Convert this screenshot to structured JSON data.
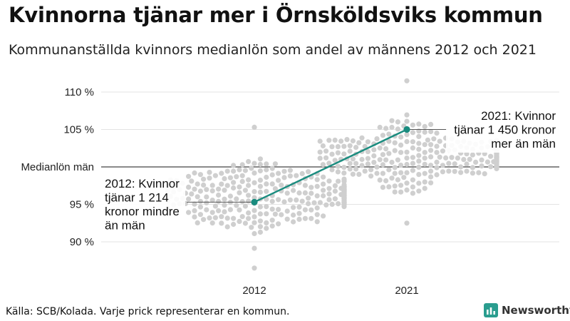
{
  "title": "Kvinnorna tjänar mer i Örnsköldsviks kommun",
  "subtitle": "Kommunanställda kvinnors medianlön som andel av männens 2012 och 2021",
  "source": "Källa: SCB/Kolada. Varje prick representerar en kommun.",
  "brand": "Newsworthy",
  "colors": {
    "highlight": "#1a8c7f",
    "dots": "#cfcfcf",
    "grid": "#e3e3e3",
    "reference": "#444444",
    "brand": "#2a9d8f"
  },
  "chart_data": {
    "type": "scatter",
    "subtype": "beeswarm",
    "categories": [
      "2012",
      "2021"
    ],
    "y_ticks": [
      {
        "value": 90,
        "label": "90 %"
      },
      {
        "value": 95,
        "label": "95 %"
      },
      {
        "value": 100,
        "label": "Medianlön män"
      },
      {
        "value": 105,
        "label": "105 %"
      },
      {
        "value": 110,
        "label": "110 %"
      }
    ],
    "ylim": [
      86,
      112
    ],
    "highlight_series": {
      "points": [
        {
          "x": "2012",
          "y": 95.3
        },
        {
          "x": "2021",
          "y": 105.0
        }
      ]
    },
    "distribution": [
      {
        "x": "2012",
        "min": 86.5,
        "max": 105.3,
        "median": 96.0
      },
      {
        "x": "2021",
        "min": 92.5,
        "max": 111.5,
        "median": 101.5
      }
    ],
    "annotations": [
      {
        "year": "2012",
        "lines": [
          "2012: Kvinnor",
          "tjänar 1 214",
          "kronor mindre",
          "än män"
        ]
      },
      {
        "year": "2021",
        "lines": [
          "2021: Kvinnor",
          "tjänar 1 450 kronor",
          "mer än män"
        ]
      }
    ],
    "grid": true
  }
}
